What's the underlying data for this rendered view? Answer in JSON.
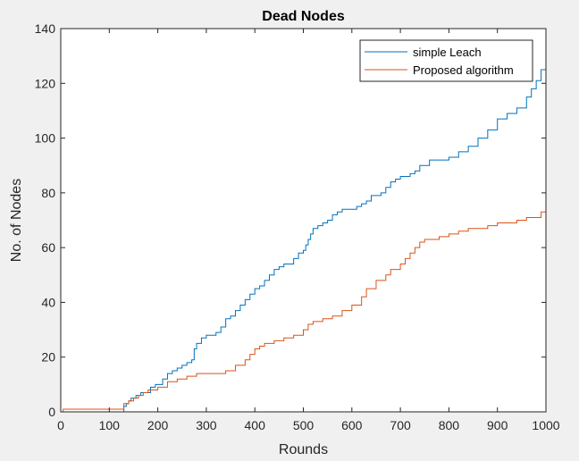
{
  "chart_data": {
    "type": "line",
    "title": "Dead Nodes",
    "xlabel": "Rounds",
    "ylabel": "No. of Nodes",
    "xlim": [
      0,
      1000
    ],
    "ylim": [
      0,
      140
    ],
    "xticks": [
      0,
      100,
      200,
      300,
      400,
      500,
      600,
      700,
      800,
      900,
      1000
    ],
    "yticks": [
      0,
      20,
      40,
      60,
      80,
      100,
      120,
      140
    ],
    "grid": false,
    "legend_position": "top-right",
    "series": [
      {
        "name": "simple Leach",
        "color": "#0072BD",
        "x": [
          0,
          125,
          130,
          135,
          140,
          145,
          155,
          165,
          175,
          185,
          195,
          210,
          220,
          230,
          240,
          250,
          260,
          270,
          275,
          280,
          290,
          300,
          310,
          320,
          330,
          340,
          350,
          360,
          370,
          380,
          390,
          400,
          410,
          420,
          430,
          440,
          450,
          460,
          470,
          480,
          490,
          500,
          505,
          510,
          515,
          520,
          530,
          540,
          550,
          560,
          570,
          580,
          590,
          600,
          610,
          620,
          630,
          640,
          650,
          660,
          670,
          680,
          690,
          700,
          710,
          720,
          730,
          740,
          760,
          780,
          800,
          820,
          840,
          860,
          880,
          900,
          920,
          940,
          960,
          970,
          980,
          990,
          1000
        ],
        "values": [
          0,
          0,
          2,
          3,
          4,
          5,
          6,
          7,
          7,
          9,
          10,
          12,
          14,
          15,
          16,
          17,
          18,
          19,
          23,
          25,
          27,
          28,
          28,
          29,
          31,
          34,
          35,
          37,
          39,
          41,
          43,
          45,
          46,
          48,
          50,
          52,
          53,
          54,
          54,
          56,
          58,
          59,
          61,
          63,
          65,
          67,
          68,
          69,
          70,
          72,
          73,
          74,
          74,
          74,
          75,
          76,
          77,
          79,
          79,
          80,
          82,
          84,
          85,
          86,
          86,
          87,
          88,
          90,
          92,
          92,
          93,
          95,
          97,
          100,
          103,
          107,
          109,
          111,
          115,
          118,
          121,
          125,
          128
        ]
      },
      {
        "name": "Proposed algorithm",
        "color": "#D95319",
        "x": [
          0,
          5,
          125,
          130,
          140,
          150,
          160,
          170,
          180,
          190,
          200,
          220,
          240,
          260,
          280,
          300,
          330,
          340,
          360,
          380,
          390,
          400,
          410,
          420,
          440,
          460,
          480,
          500,
          510,
          520,
          540,
          560,
          580,
          600,
          620,
          630,
          650,
          670,
          680,
          700,
          710,
          720,
          730,
          740,
          750,
          760,
          780,
          800,
          820,
          840,
          860,
          880,
          900,
          920,
          940,
          960,
          970,
          980,
          990,
          1000
        ],
        "values": [
          0,
          1,
          1,
          3,
          4,
          5,
          6,
          7,
          8,
          8,
          9,
          11,
          12,
          13,
          14,
          14,
          14,
          15,
          17,
          19,
          21,
          23,
          24,
          25,
          26,
          27,
          28,
          30,
          32,
          33,
          34,
          35,
          37,
          39,
          42,
          45,
          48,
          50,
          52,
          54,
          56,
          58,
          60,
          62,
          63,
          63,
          64,
          65,
          66,
          67,
          67,
          68,
          69,
          69,
          70,
          71,
          71,
          71,
          73,
          74
        ]
      }
    ]
  }
}
